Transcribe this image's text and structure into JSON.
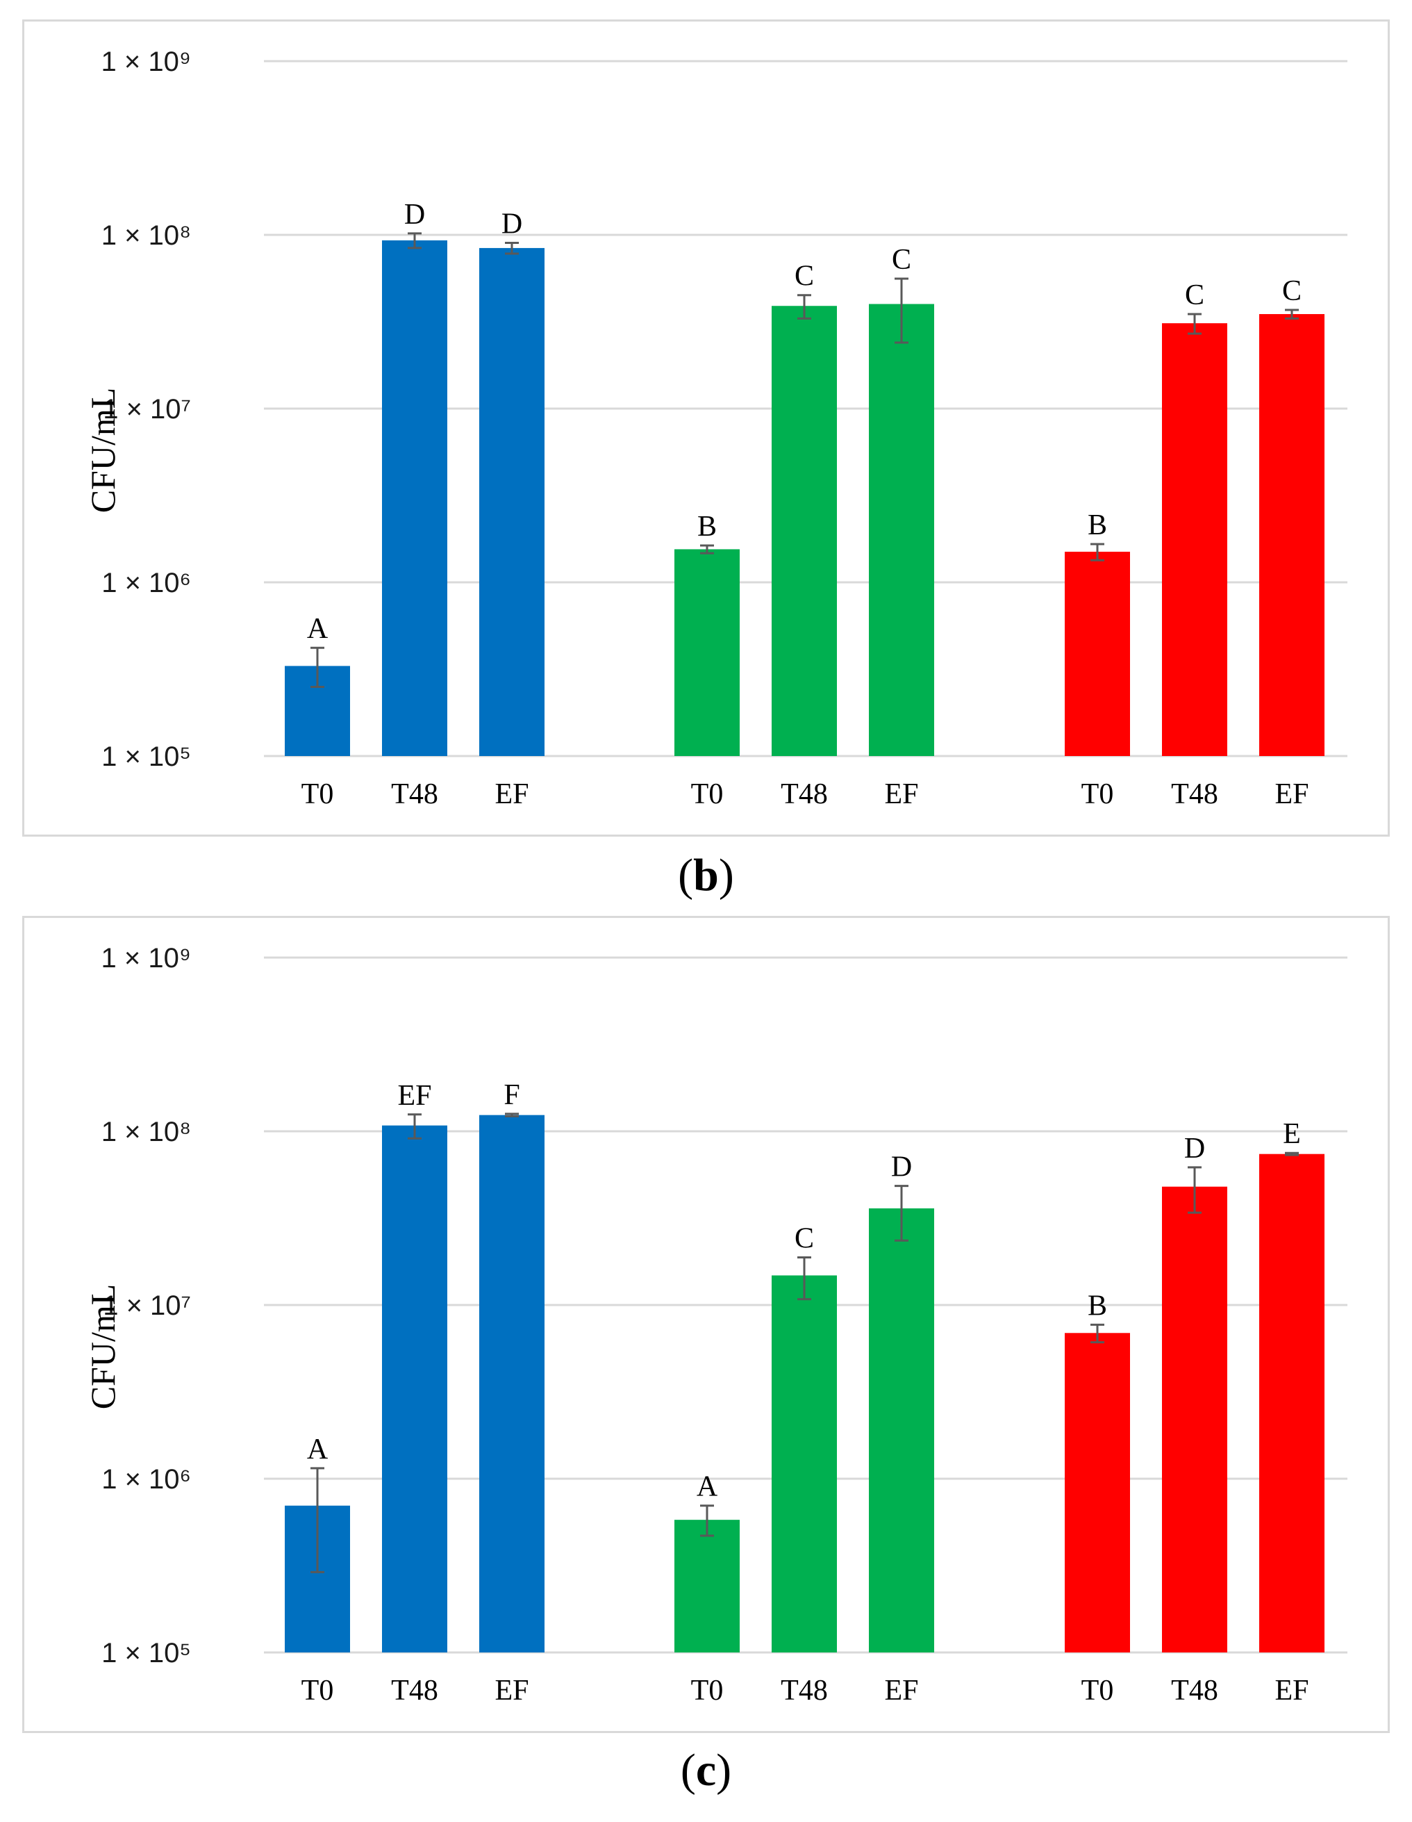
{
  "chart_data": [
    {
      "type": "bar",
      "panel_label": "b",
      "ylabel": "CFU/mL",
      "yscale": "log",
      "ylim": [
        100000,
        1000000000
      ],
      "yticks": [
        {
          "value": 100000,
          "label": "1 × 10⁵"
        },
        {
          "value": 1000000,
          "label": "1 × 10⁶"
        },
        {
          "value": 10000000,
          "label": "1 × 10⁷"
        },
        {
          "value": 100000000,
          "label": "1 × 10⁸"
        },
        {
          "value": 1000000000,
          "label": "1 × 10⁹"
        }
      ],
      "grid": true,
      "groups": [
        {
          "color": "#0070c0",
          "bars": [
            {
              "label": "T0",
              "value": 330000,
              "err_low": 250000,
              "err_high": 420000,
              "letter": "A"
            },
            {
              "label": "T48",
              "value": 93000000,
              "err_low": 84000000,
              "err_high": 102000000,
              "letter": "D"
            },
            {
              "label": "EF",
              "value": 84000000,
              "err_low": 78000000,
              "err_high": 90000000,
              "letter": "D"
            }
          ]
        },
        {
          "color": "#00b050",
          "bars": [
            {
              "label": "T0",
              "value": 1550000,
              "err_low": 1470000,
              "err_high": 1630000,
              "letter": "B"
            },
            {
              "label": "T48",
              "value": 39000000,
              "err_low": 33000000,
              "err_high": 45000000,
              "letter": "C"
            },
            {
              "label": "EF",
              "value": 40000000,
              "err_low": 24000000,
              "err_high": 56000000,
              "letter": "C"
            }
          ]
        },
        {
          "color": "#ff0000",
          "bars": [
            {
              "label": "T0",
              "value": 1500000,
              "err_low": 1340000,
              "err_high": 1660000,
              "letter": "B"
            },
            {
              "label": "T48",
              "value": 31000000,
              "err_low": 27000000,
              "err_high": 35000000,
              "letter": "C"
            },
            {
              "label": "EF",
              "value": 35000000,
              "err_low": 33000000,
              "err_high": 37000000,
              "letter": "C"
            }
          ]
        }
      ]
    },
    {
      "type": "bar",
      "panel_label": "c",
      "ylabel": "CFU/mL",
      "yscale": "log",
      "ylim": [
        100000,
        1000000000
      ],
      "yticks": [
        {
          "value": 100000,
          "label": "1 × 10⁵"
        },
        {
          "value": 1000000,
          "label": "1 × 10⁶"
        },
        {
          "value": 10000000,
          "label": "1 × 10⁷"
        },
        {
          "value": 100000000,
          "label": "1 × 10⁸"
        },
        {
          "value": 1000000000,
          "label": "1 × 10⁹"
        }
      ],
      "grid": true,
      "groups": [
        {
          "color": "#0070c0",
          "bars": [
            {
              "label": "T0",
              "value": 700000,
              "err_low": 290000,
              "err_high": 1150000,
              "letter": "A"
            },
            {
              "label": "T48",
              "value": 108000000,
              "err_low": 91000000,
              "err_high": 125000000,
              "letter": "EF"
            },
            {
              "label": "EF",
              "value": 124000000,
              "err_low": 122000000,
              "err_high": 126000000,
              "letter": "F"
            }
          ]
        },
        {
          "color": "#00b050",
          "bars": [
            {
              "label": "T0",
              "value": 580000,
              "err_low": 470000,
              "err_high": 700000,
              "letter": "A"
            },
            {
              "label": "T48",
              "value": 14800000,
              "err_low": 10800000,
              "err_high": 18800000,
              "letter": "C"
            },
            {
              "label": "EF",
              "value": 36000000,
              "err_low": 23500000,
              "err_high": 48500000,
              "letter": "D"
            }
          ]
        },
        {
          "color": "#ff0000",
          "bars": [
            {
              "label": "T0",
              "value": 6900000,
              "err_low": 6100000,
              "err_high": 7700000,
              "letter": "B"
            },
            {
              "label": "T48",
              "value": 48000000,
              "err_low": 34000000,
              "err_high": 62000000,
              "letter": "D"
            },
            {
              "label": "EF",
              "value": 74000000,
              "err_low": 73000000,
              "err_high": 75000000,
              "letter": "E"
            }
          ]
        }
      ]
    }
  ]
}
